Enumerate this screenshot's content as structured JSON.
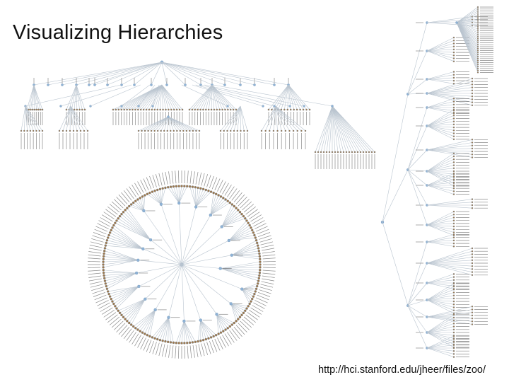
{
  "slide": {
    "title": "Visualizing Hierarchies",
    "source_url": "http://hci.stanford.edu/jheer/files/zoo/"
  },
  "colors": {
    "link": "#b9c4cf",
    "internal_node": "#8fb3d6",
    "leaf_node": "#a0784a",
    "label": "#5a5a5a"
  },
  "figures": [
    {
      "name": "node-link tree (top-down)"
    },
    {
      "name": "radial tree"
    },
    {
      "name": "node-link tree (left-right)"
    }
  ]
}
